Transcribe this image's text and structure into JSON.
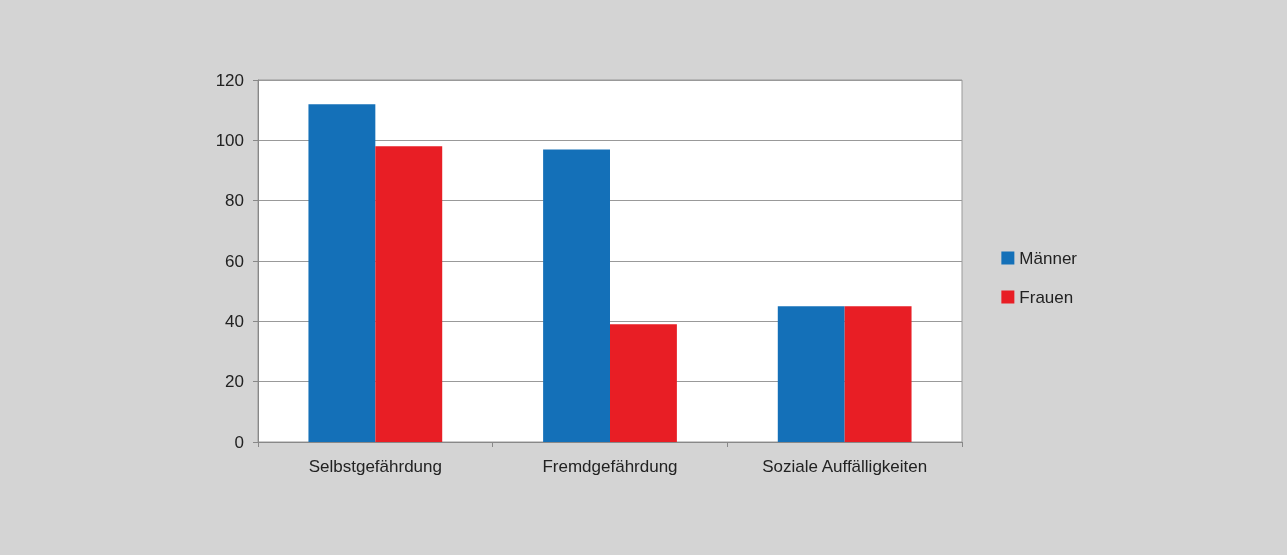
{
  "chart_data": {
    "type": "bar",
    "categories": [
      "Selbstgefährdung",
      "Fremdgefährdung",
      "Soziale Auffälligkeiten"
    ],
    "series": [
      {
        "name": "Männer",
        "color": "#1470b8",
        "values": [
          112,
          97,
          45
        ]
      },
      {
        "name": "Frauen",
        "color": "#e81e25",
        "values": [
          98,
          39,
          45
        ]
      }
    ],
    "ylim": [
      0,
      120
    ],
    "yticks": [
      0,
      20,
      40,
      60,
      80,
      100,
      120
    ],
    "grid": "y",
    "legend": "right"
  }
}
